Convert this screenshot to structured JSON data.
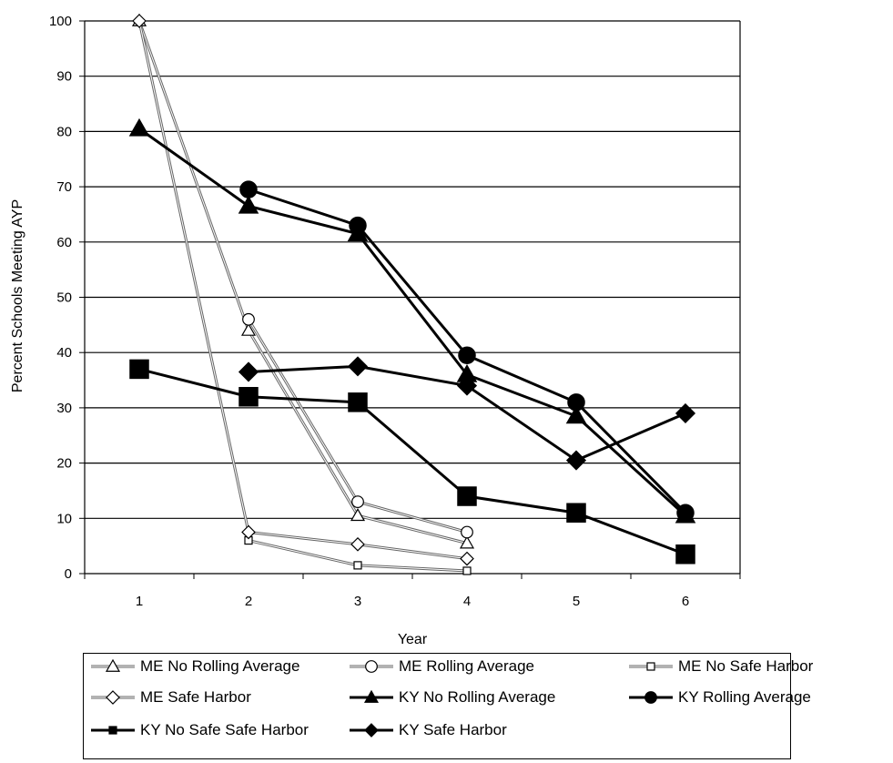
{
  "chart_data": {
    "type": "line",
    "xlabel": "Year",
    "ylabel": "Percent Schools Meeting AYP",
    "x_ticks": [
      "1",
      "2",
      "3",
      "4",
      "5",
      "6"
    ],
    "ylim": [
      0,
      100
    ],
    "y_ticks": [
      "0",
      "10",
      "20",
      "30",
      "40",
      "50",
      "60",
      "70",
      "80",
      "90",
      "100"
    ],
    "grid": "horizontal",
    "legend_position": "bottom",
    "series": [
      {
        "name": "ME No Rolling Average",
        "marker": "triangle",
        "filled": false,
        "weight": "thin",
        "x": [
          1,
          2,
          3,
          4
        ],
        "values": [
          100,
          44,
          10.5,
          5.5
        ]
      },
      {
        "name": "ME Rolling Average",
        "marker": "circle",
        "filled": false,
        "weight": "thin",
        "x": [
          2,
          3,
          4
        ],
        "values": [
          46,
          13,
          7.5
        ]
      },
      {
        "name": "ME No Safe Harbor",
        "marker": "square",
        "filled": false,
        "weight": "thin",
        "x": [
          2,
          3,
          4
        ],
        "values": [
          6,
          1.5,
          0.5
        ]
      },
      {
        "name": "ME Safe Harbor",
        "marker": "diamond",
        "filled": false,
        "weight": "thin",
        "x": [
          1,
          2,
          3,
          4
        ],
        "values": [
          100,
          7.5,
          5.3,
          2.7
        ]
      },
      {
        "name": "KY No Rolling Average",
        "marker": "triangle",
        "filled": true,
        "weight": "thick",
        "x": [
          1,
          2,
          3,
          4,
          5,
          6
        ],
        "values": [
          80.5,
          66.5,
          61.5,
          36,
          28.5,
          10.5
        ]
      },
      {
        "name": "KY Rolling Average",
        "marker": "circle",
        "filled": true,
        "weight": "thick",
        "x": [
          2,
          3,
          4,
          5,
          6
        ],
        "values": [
          69.5,
          63,
          39.5,
          31,
          11
        ]
      },
      {
        "name": "KY No Safe Safe Harbor",
        "marker": "square",
        "filled": true,
        "weight": "thick",
        "x": [
          1,
          2,
          3,
          4,
          5,
          6
        ],
        "values": [
          37,
          32,
          31,
          14,
          11,
          3.5
        ]
      },
      {
        "name": "KY Safe Harbor",
        "marker": "diamond",
        "filled": true,
        "weight": "thick",
        "x": [
          2,
          3,
          4,
          5,
          6
        ],
        "values": [
          36.5,
          37.5,
          34,
          20.5,
          29
        ]
      }
    ]
  },
  "legend": [
    "ME No Rolling Average",
    "ME Rolling Average",
    "ME No Safe Harbor",
    "ME Safe Harbor",
    "KY No Rolling Average",
    "KY Rolling Average",
    "KY No Safe Safe Harbor",
    "KY Safe Harbor"
  ]
}
